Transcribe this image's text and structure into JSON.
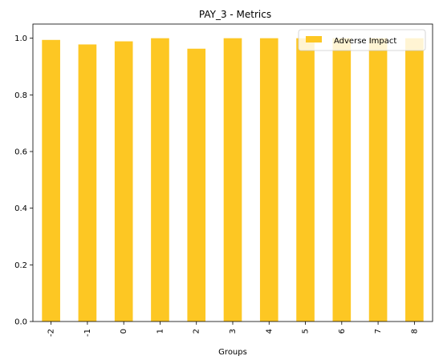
{
  "chart_data": {
    "type": "bar",
    "title": "PAY_3 - Metrics",
    "xlabel": "Groups",
    "ylabel": "",
    "categories": [
      "-2",
      "-1",
      "0",
      "1",
      "2",
      "3",
      "4",
      "5",
      "6",
      "7",
      "8"
    ],
    "series": [
      {
        "name": "Adverse Impact",
        "values": [
          0.994,
          0.978,
          0.989,
          1.0,
          0.963,
          1.0,
          1.0,
          1.0,
          1.0,
          1.0,
          1.0
        ]
      }
    ],
    "ylim": [
      0,
      1.05
    ],
    "yticks": [
      "0.0",
      "0.2",
      "0.4",
      "0.6",
      "0.8",
      "1.0"
    ],
    "ytick_values": [
      0,
      0.2,
      0.4,
      0.6,
      0.8,
      1.0
    ],
    "grid": false,
    "legend_position": "top-right",
    "colors": {
      "bar": "#fdc723",
      "axis": "#000000",
      "legend_border": "#cccccc"
    }
  }
}
